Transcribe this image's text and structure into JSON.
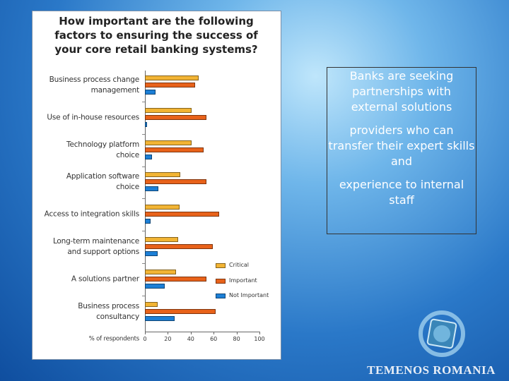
{
  "chart_data": {
    "type": "bar",
    "orientation": "horizontal",
    "title": "How important are the following factors to ensuring the success of your core retail banking systems?",
    "categories": [
      "Business process change management",
      "Use of in-house resources",
      "Technology platform choice",
      "Application software choice",
      "Access to integration skills",
      "Long-term maintenance and support options",
      "A solutions partner",
      "Business process consultancy"
    ],
    "series": [
      {
        "name": "Critical",
        "color": "#f2b434",
        "values": [
          47,
          41,
          41,
          31,
          30,
          29,
          27,
          11
        ]
      },
      {
        "name": "Important",
        "color": "#e8621a",
        "values": [
          44,
          54,
          51,
          54,
          65,
          59,
          54,
          62
        ]
      },
      {
        "name": "Not Important",
        "color": "#1c7fd6",
        "values": [
          9,
          2,
          6,
          12,
          5,
          11,
          17,
          26
        ]
      }
    ],
    "xlabel": "% of respondents",
    "xlim": [
      0,
      100
    ],
    "xticks": [
      0,
      20,
      40,
      60,
      80,
      100
    ]
  },
  "text_box": [
    "Banks are seeking partnerships with external solutions",
    "providers who can transfer their expert skills and",
    "experience to internal staff"
  ],
  "footer": "TEMENOS ROMANIA"
}
